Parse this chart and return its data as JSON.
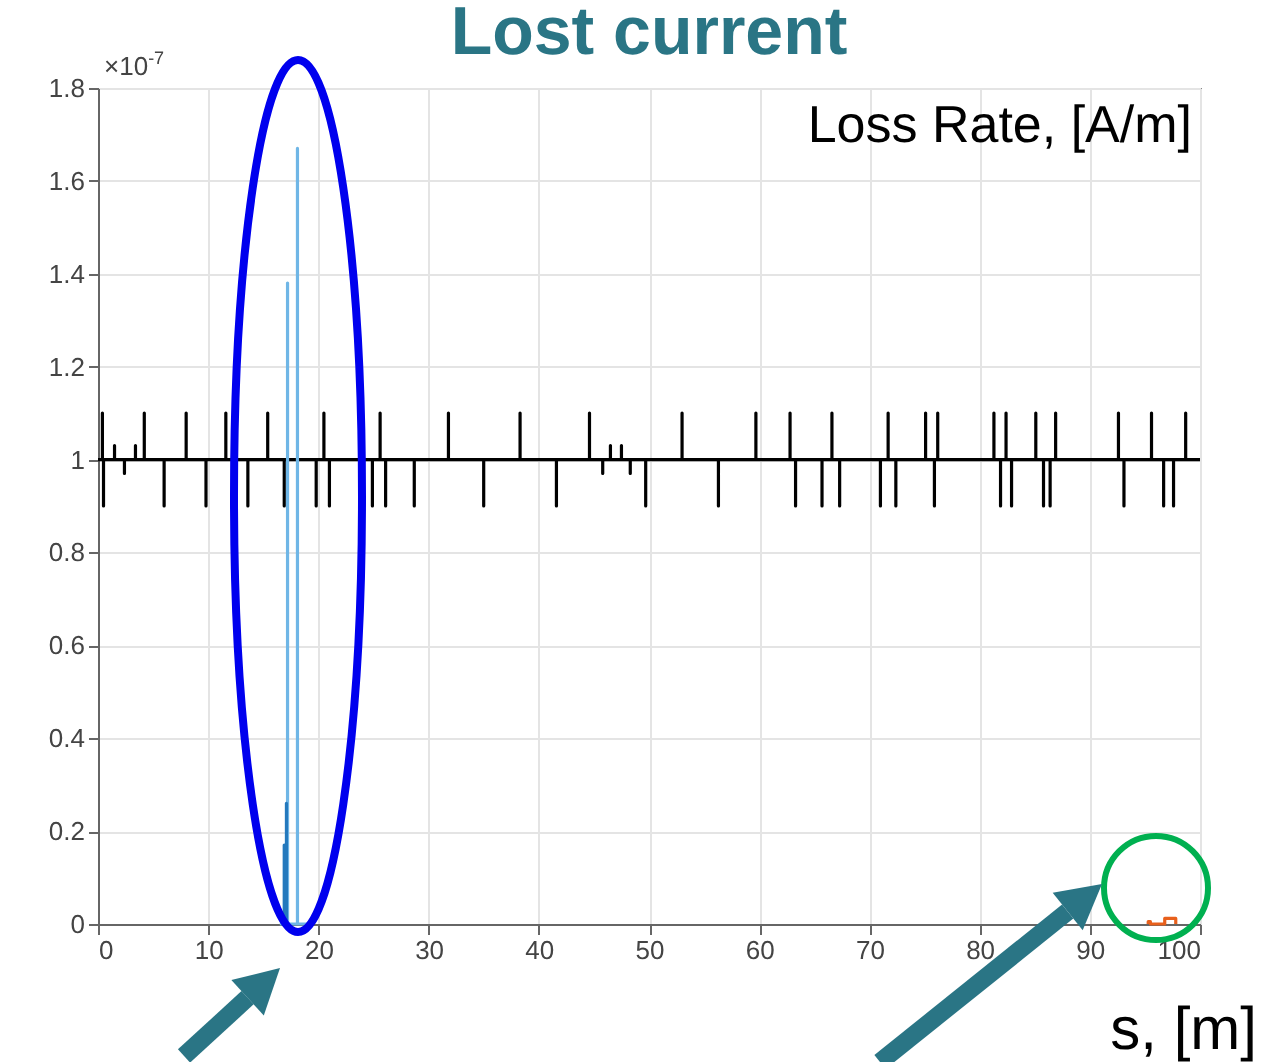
{
  "chart_data": {
    "type": "line",
    "title": "Lost current",
    "xlabel": "s, [m]",
    "ylabel": "Loss Rate, [A/m]",
    "annotations": [
      "×10$^{-7}$"
    ],
    "xlim": [
      0,
      100
    ],
    "xticks": [
      0,
      10,
      20,
      30,
      40,
      50,
      60,
      70,
      80,
      90,
      100
    ],
    "ylim": [
      0,
      1.8
    ],
    "yticks": [
      0,
      0.2,
      0.4,
      0.6,
      0.8,
      1,
      1.2,
      1.4,
      1.6,
      1.8
    ],
    "grid": true,
    "line_style": "solid",
    "series": [
      {
        "color": "#000000",
        "x": [
          0,
          0.4,
          0.4,
          0.4,
          0.5,
          0.5,
          0.5,
          1.5,
          1.5,
          1.5,
          2.4,
          2.4,
          2.4,
          3.4,
          3.4,
          3.4,
          4.2,
          4.2,
          4.2,
          6.0,
          6.0,
          6.0,
          8.0,
          8.0,
          8.0,
          9.8,
          9.8,
          9.8,
          11.6,
          11.6,
          11.6,
          13.6,
          13.6,
          13.6,
          15.4,
          15.4,
          15.4,
          16.9,
          16.9,
          16.9,
          19.8,
          19.8,
          19.8,
          20.5,
          20.5,
          20.5,
          21.0,
          21.0,
          21.0,
          24.9,
          24.9,
          24.9,
          25.6,
          25.6,
          25.6,
          26.1,
          26.1,
          26.1,
          28.7,
          28.7,
          28.7,
          31.8,
          31.8,
          31.8,
          35.0,
          35.0,
          35.0,
          38.3,
          38.3,
          38.3,
          41.6,
          41.6,
          41.6,
          44.6,
          44.6,
          44.6,
          45.8,
          45.8,
          45.8,
          46.5,
          46.5,
          46.5,
          47.5,
          47.5,
          47.5,
          48.3,
          48.3,
          48.3,
          49.7,
          49.7,
          49.7,
          53.0,
          53.0,
          53.0,
          56.3,
          56.3,
          56.3,
          59.7,
          59.7,
          59.7,
          62.8,
          62.8,
          62.8,
          63.3,
          63.3,
          63.3,
          65.7,
          65.7,
          65.7,
          66.6,
          66.6,
          66.6,
          67.3,
          67.3,
          67.3,
          71.0,
          71.0,
          71.0,
          71.7,
          71.7,
          71.7,
          72.4,
          72.4,
          72.4,
          75.1,
          75.1,
          75.1,
          75.9,
          75.9,
          75.9,
          76.2,
          76.2,
          76.2,
          81.3,
          81.3,
          81.3,
          81.9,
          81.9,
          81.9,
          82.4,
          82.4,
          82.4,
          82.9,
          82.9,
          82.9,
          85.1,
          85.1,
          85.1,
          85.8,
          85.8,
          85.8,
          86.4,
          86.4,
          86.4,
          86.9,
          86.9,
          86.9,
          92.6,
          92.6,
          92.6,
          93.1,
          93.1,
          93.1,
          95.6,
          95.6,
          95.6,
          96.7,
          96.7,
          96.7,
          97.6,
          97.6,
          97.6,
          98.7,
          98.7,
          98.7,
          100
        ],
        "values": [
          1,
          1,
          1.1,
          1,
          1,
          0.9,
          1,
          1,
          1.03,
          1,
          1,
          0.97,
          1,
          1,
          1.03,
          1,
          1,
          1.1,
          1,
          1,
          0.9,
          1,
          1,
          1.1,
          1,
          1,
          0.9,
          1,
          1,
          1.1,
          1,
          1,
          0.9,
          1,
          1,
          1.1,
          1,
          1,
          0.9,
          1,
          1,
          0.9,
          1,
          1,
          1.1,
          1,
          1,
          0.9,
          1,
          1,
          0.9,
          1,
          1,
          1.1,
          1,
          1,
          0.9,
          1,
          1,
          0.9,
          1,
          1,
          1.1,
          1,
          1,
          0.9,
          1,
          1,
          1.1,
          1,
          1,
          0.9,
          1,
          1,
          1.1,
          1,
          1,
          0.97,
          1,
          1,
          1.03,
          1,
          1,
          1.03,
          1,
          1,
          0.97,
          1,
          1,
          0.9,
          1,
          1,
          1.1,
          1,
          1,
          0.9,
          1,
          1,
          1.1,
          1,
          1,
          1.1,
          1,
          1,
          0.9,
          1,
          1,
          0.9,
          1,
          1,
          1.1,
          1,
          1,
          0.9,
          1,
          1,
          0.9,
          1,
          1,
          1.1,
          1,
          1,
          0.9,
          1,
          1,
          1.1,
          1,
          1,
          0.9,
          1,
          1,
          1.1,
          1,
          1,
          1.1,
          1,
          1,
          0.9,
          1,
          1,
          1.1,
          1,
          1,
          0.9,
          1,
          1,
          1.1,
          1,
          1,
          0.9,
          1,
          1,
          0.9,
          1,
          1,
          1.1,
          1,
          1,
          1.1,
          1,
          1,
          0.9,
          1,
          1,
          1.1,
          1,
          1,
          0.9,
          1,
          1,
          0.9,
          1,
          1,
          1.1,
          1,
          1
        ]
      },
      {
        "color": "#6fb6e6",
        "x": [
          16.5,
          17.2,
          17.2,
          17.2,
          18.1,
          18.1,
          18.1,
          19.0
        ],
        "values": [
          0,
          0,
          1.38,
          0,
          0,
          1.67,
          0,
          0
        ]
      },
      {
        "color": "#2479bd",
        "x": [
          16.9,
          16.9,
          16.9,
          17.1,
          17.1,
          17.1
        ],
        "values": [
          0,
          0.17,
          0,
          0,
          0.26,
          0
        ]
      },
      {
        "color": "#e8601c",
        "x": [
          95.3,
          95.3,
          95.5,
          95.5,
          96.8,
          96.8,
          97.8,
          97.8
        ],
        "values": [
          0,
          0.005,
          0.005,
          0,
          0,
          0.012,
          0.012,
          0
        ]
      }
    ]
  }
}
